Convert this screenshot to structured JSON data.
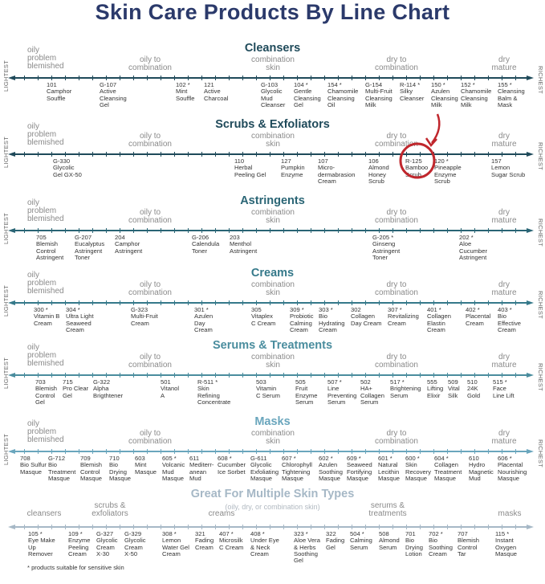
{
  "title": "Skin Care Products By Line Chart",
  "ends": {
    "left": "LIGHTEST",
    "right": "RICHEST"
  },
  "skin_types": [
    "oily\nproblem\nblemished",
    "oily to\ncombination",
    "combination\nskin",
    "dry to\ncombination",
    "dry\nmature"
  ],
  "colors": {
    "title": "#2b3a6b",
    "highlight_circle": "#c0272d"
  },
  "sections": [
    {
      "title": "Cleansers",
      "color": "#1f4a5a",
      "products": [
        {
          "code": "101",
          "name": "Camphor\nSouffle"
        },
        {
          "code": "G-107",
          "name": "Active\nCleansing\nGel"
        },
        {
          "code": "102 *",
          "name": "Mint\nSouffle"
        },
        {
          "code": "121",
          "name": "Active\nCharcoal"
        },
        {
          "code": "G-103",
          "name": "Glycolic\nMud\nCleanser"
        },
        {
          "code": "104 *",
          "name": "Gentle\nCleansing\nGel"
        },
        {
          "code": "154 *",
          "name": "Chamomile\nCleansing\nOil"
        },
        {
          "code": "G-154",
          "name": "Multi-Fruit\nCleansing\nMilk"
        },
        {
          "code": "R-114 *",
          "name": "Silky\nCleanser"
        },
        {
          "code": "150 *",
          "name": "Azulen\nCleansing\nMilk"
        },
        {
          "code": "152 *",
          "name": "Chamomile\nCleansing\nMilk"
        },
        {
          "code": "155 *",
          "name": "Cleansing\nBalm &\nMask"
        }
      ]
    },
    {
      "title": "Scrubs & Exfoliators",
      "color": "#1f4a5a",
      "products": [
        {
          "code": "G-330",
          "name": "Glycolic\nGel GX-50"
        },
        {
          "code": "110",
          "name": "Herbal\nPeeling Gel"
        },
        {
          "code": "127",
          "name": "Pumpkin\nEnzyme"
        },
        {
          "code": "107",
          "name": "Micro-\ndermabrasion\nCream"
        },
        {
          "code": "106",
          "name": "Almond\nHoney\nScrub"
        },
        {
          "code": "R-125",
          "name": "Bamboo\nScrub"
        },
        {
          "code": "120 *",
          "name": "Pineapple\nEnzyme\nScrub"
        },
        {
          "code": "157",
          "name": "Lemon\nSugar Scrub"
        }
      ]
    },
    {
      "title": "Astringents",
      "color": "#2a6575",
      "products": [
        {
          "code": "705",
          "name": "Blemish\nControl\nAstringent"
        },
        {
          "code": "G-207",
          "name": "Eucalyptus\nAstringent\nToner"
        },
        {
          "code": "204",
          "name": "Camphor\nAstringent"
        },
        {
          "code": "G-206",
          "name": "Calendula\nToner"
        },
        {
          "code": "203",
          "name": "Menthol\nAstringent"
        },
        {
          "code": "G-205 *",
          "name": "Ginseng\nAstringent\nToner"
        },
        {
          "code": "202 *",
          "name": "Aloe\nCucumber\nAstringent"
        }
      ]
    },
    {
      "title": "Creams",
      "color": "#35798a",
      "products": [
        {
          "code": "300 *",
          "name": "Vitamin B\nCream"
        },
        {
          "code": "304 *",
          "name": "Ultra Light\nSeaweed\nCream"
        },
        {
          "code": "G-323",
          "name": "Multi-Fruit\nCream"
        },
        {
          "code": "301 *",
          "name": "Azulen\nDay\nCream"
        },
        {
          "code": "305",
          "name": "Vitaplex\nC Cream"
        },
        {
          "code": "309 *",
          "name": "Probiotic\nCalming\nCream"
        },
        {
          "code": "303 *",
          "name": "Bio\nHydrating\nCream"
        },
        {
          "code": "302",
          "name": "Collagen\nDay Cream"
        },
        {
          "code": "307 *",
          "name": "Revitalizing\nCream"
        },
        {
          "code": "401 *",
          "name": "Collagen\nElastin\nCream"
        },
        {
          "code": "402 *",
          "name": "Placental\nCream"
        },
        {
          "code": "403 *",
          "name": "Bio\nEffective\nCream"
        }
      ]
    },
    {
      "title": "Serums & Treatments",
      "color": "#4a8d9e",
      "products": [
        {
          "code": "703",
          "name": "Blemish\nControl\nGel"
        },
        {
          "code": "715",
          "name": "Pro Clear\nGel"
        },
        {
          "code": "G-322",
          "name": "Alpha\nBrigthtener"
        },
        {
          "code": "501",
          "name": "Vitanol\nA"
        },
        {
          "code": "R-511 *",
          "name": "Skin\nRefining\nConcentrate"
        },
        {
          "code": "503",
          "name": "Vitamin\nC Serum"
        },
        {
          "code": "505",
          "name": "Fruit\nEnzyme\nSerum"
        },
        {
          "code": "507 *",
          "name": "Line\nPreventing\nSerum"
        },
        {
          "code": "502",
          "name": "HA+\nCollagen\nSerum"
        },
        {
          "code": "517 *",
          "name": "Brightening\nSerum"
        },
        {
          "code": "555",
          "name": "Lifting\nElixir"
        },
        {
          "code": "509",
          "name": "Vital\nSilk"
        },
        {
          "code": "510",
          "name": "24K\nGold"
        },
        {
          "code": "515 *",
          "name": "Face\nLine Lift"
        }
      ]
    },
    {
      "title": "Masks",
      "color": "#6aa6bd",
      "products": [
        {
          "code": "708",
          "name": "Bio Sulfur\nMasque"
        },
        {
          "code": "G-712",
          "name": "Bio\nTreatment\nMasque"
        },
        {
          "code": "709",
          "name": "Blemish\nControl\nMasque"
        },
        {
          "code": "710",
          "name": "Bio\nDrying\nMasque"
        },
        {
          "code": "603",
          "name": "Mint\nMasque"
        },
        {
          "code": "605 *",
          "name": "Volcanic\nMud\nMasque"
        },
        {
          "code": "611",
          "name": "Mediterr-\nanean\nMud"
        },
        {
          "code": "608 *",
          "name": "Cucumber\nIce Sorbet"
        },
        {
          "code": "G-611",
          "name": "Glycolic\nExfoliating\nMasque"
        },
        {
          "code": "607 *",
          "name": "Chlorophyll\nTightening\nMasque"
        },
        {
          "code": "602 *",
          "name": "Azulen\nSoothing\nMasque"
        },
        {
          "code": "609 *",
          "name": "Seaweed\nFortifying\nMasque"
        },
        {
          "code": "601 *",
          "name": "Natural\nLecithin\nMasque"
        },
        {
          "code": "600 *",
          "name": "Skin\nRecovery\nMasque"
        },
        {
          "code": "604 *",
          "name": "Collagen\nTreatment\nMasque"
        },
        {
          "code": "610",
          "name": "Hydro\nMagnetic\nMud"
        },
        {
          "code": "606 *",
          "name": "Placental\nNourishing\nMasque"
        }
      ]
    },
    {
      "title": "Great For Multiple Skin Types",
      "subtitle": "(oily, dry, or combination skin)",
      "color": "#a6b8c6",
      "categories": [
        "cleansers",
        "scrubs &\nexfoliators",
        "creams",
        "serums &\ntreatments",
        "masks"
      ],
      "products": [
        {
          "code": "105 *",
          "name": "Eye Make\nUp\nRemover"
        },
        {
          "code": "109 *",
          "name": "Enzyme\nPeeling\nCream"
        },
        {
          "code": "G-327",
          "name": "Glycolic\nCream\nX-30"
        },
        {
          "code": "G-329",
          "name": "Glycolic\nCream\nX-50"
        },
        {
          "code": "308 *",
          "name": "Lemon\nWater Gel\nCream"
        },
        {
          "code": "321",
          "name": "Fading\nCream"
        },
        {
          "code": "407 *",
          "name": "Microsilk\nC Cream"
        },
        {
          "code": "408 *",
          "name": "Under Eye\n& Neck\nCream"
        },
        {
          "code": "323 *",
          "name": "Aloe Vera\n& Herbs\nSoothing\nGel"
        },
        {
          "code": "322",
          "name": "Fading\nGel"
        },
        {
          "code": "504 *",
          "name": "Calming\nSerum"
        },
        {
          "code": "508",
          "name": "Almond\nSerum"
        },
        {
          "code": "701",
          "name": "Bio\nDrying\nLotion"
        },
        {
          "code": "702 *",
          "name": "Bio\nSoothing\nCream"
        },
        {
          "code": "707",
          "name": "Blemish\nControl\nTar"
        },
        {
          "code": "115 *",
          "name": "Instant\nOxygen\nMasque"
        }
      ]
    }
  ],
  "footnote": "* products suitable for sensitive skin"
}
